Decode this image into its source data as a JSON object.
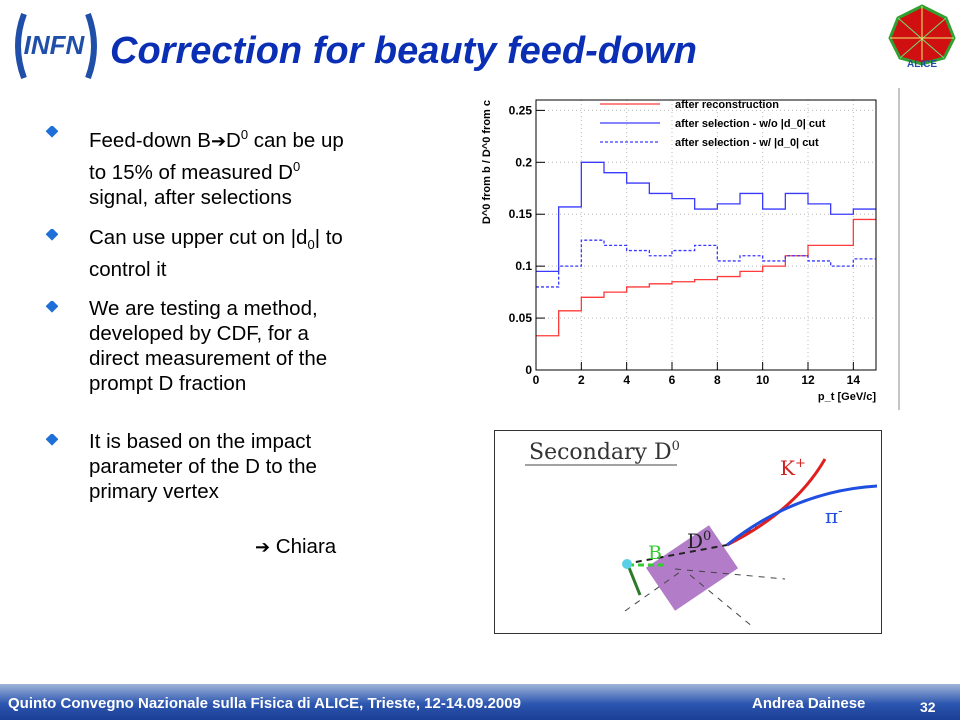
{
  "slide": {
    "title": "Correction for beauty feed-down",
    "logo_text": "INFN",
    "corner_logo_text": "ALICE",
    "page_number": "32"
  },
  "bullets": [
    {
      "lines": [
        "Feed-down B",
        "D",
        "0",
        " can be up",
        "to 15% of measured D",
        "0",
        "signal, after selections"
      ]
    },
    {
      "lines": [
        "Can use upper cut on |d",
        "0",
        "| to",
        "control it"
      ]
    },
    {
      "lines": [
        "We are testing a method,",
        "developed by CDF, for a",
        "direct measurement of the",
        "prompt D fraction"
      ]
    },
    {
      "lines": [
        "It is based on the impact",
        "parameter of the D to the",
        "primary vertex"
      ]
    }
  ],
  "arrow_note": "Chiara",
  "footer": {
    "conference": "Quinto Convegno Nazionale sulla Fisica di ALICE, Trieste, 12-14.09.2009",
    "author": "Andrea Dainese"
  },
  "colors": {
    "title": "#0a2fb4",
    "footer_bar": "#2c56b0",
    "reco_line": "#ff3a3a",
    "sel_line": "#3a3aff",
    "vertex_box": "#b27cc8",
    "k_track": "#e02020",
    "pi_track": "#1f4fe0",
    "b_track": "#33cc33"
  },
  "chart_data": {
    "type": "line",
    "xlabel": "p_t [GeV/c]",
    "ylabel": "D^0 from b / D^0 from c",
    "xlim": [
      0,
      15
    ],
    "ylim": [
      0,
      0.26
    ],
    "x_ticks": [
      "0",
      "2",
      "4",
      "6",
      "8",
      "10",
      "12",
      "14"
    ],
    "y_ticks": [
      "0",
      "0.05",
      "0.1",
      "0.15",
      "0.2",
      "0.25"
    ],
    "bin_edges": [
      0,
      1,
      2,
      3,
      4,
      5,
      6,
      7,
      8,
      9,
      10,
      11,
      12,
      13,
      14,
      15
    ],
    "series": [
      {
        "name": "after reconstruction",
        "style": "solid",
        "color": "#ff3a3a",
        "values": [
          0.033,
          0.057,
          0.07,
          0.075,
          0.08,
          0.083,
          0.085,
          0.087,
          0.09,
          0.095,
          0.1,
          0.11,
          0.12,
          0.12,
          0.145
        ]
      },
      {
        "name": "after selection - w/o |d_0| cut",
        "style": "solid",
        "color": "#3a3aff",
        "values": [
          0.095,
          0.157,
          0.2,
          0.19,
          0.18,
          0.17,
          0.165,
          0.155,
          0.16,
          0.17,
          0.155,
          0.17,
          0.16,
          0.15,
          0.155
        ]
      },
      {
        "name": "after selection - w/ |d_0| cut",
        "style": "dashed",
        "color": "#3a3aff",
        "values": [
          0.08,
          0.1,
          0.125,
          0.12,
          0.115,
          0.11,
          0.115,
          0.12,
          0.105,
          0.11,
          0.105,
          0.11,
          0.105,
          0.1,
          0.107
        ]
      }
    ]
  },
  "decay_diagram": {
    "title": "Secondary D",
    "title_sup": "0",
    "k_label": "K",
    "k_sup": "+",
    "pi_label": "π",
    "pi_sup": "-",
    "d_label": "D",
    "d_sup": "0",
    "b_label": "B"
  }
}
